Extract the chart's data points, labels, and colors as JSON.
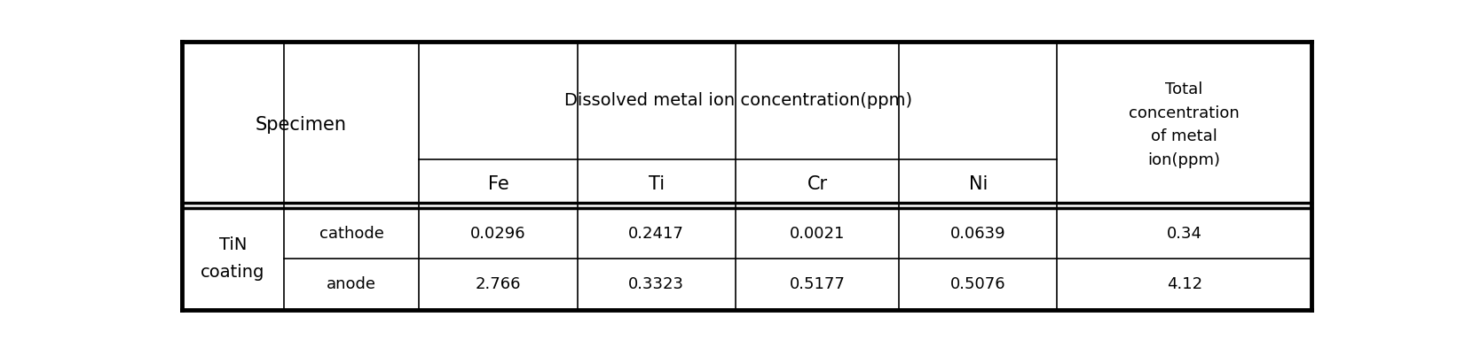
{
  "header_dissolved": "Dissolved metal ion concentration(ppm)",
  "header_total": "Total\nconcentration\nof metal\nion(ppm)",
  "header_specimen": "Specimen",
  "sub_headers": [
    "Fe",
    "Ti",
    "Cr",
    "Ni"
  ],
  "row1_label1": "TiN\ncoating",
  "row1_label2": "cathode",
  "row1_data": [
    "0.0296",
    "0.2417",
    "0.0021",
    "0.0639",
    "0.34"
  ],
  "row2_label2": "anode",
  "row2_data": [
    "2.766",
    "0.3323",
    "0.5177",
    "0.5076",
    "4.12"
  ],
  "bg_color": "#ffffff",
  "border_color": "#000000",
  "text_color": "#000000",
  "outer_border_lw": 3.5,
  "inner_border_lw": 1.2,
  "double_line_lw": 2.5,
  "col_bounds": [
    0.0,
    0.09,
    0.21,
    0.35,
    0.49,
    0.635,
    0.775,
    1.0
  ],
  "row_bounds": [
    1.0,
    0.56,
    0.38,
    0.19,
    0.0
  ]
}
